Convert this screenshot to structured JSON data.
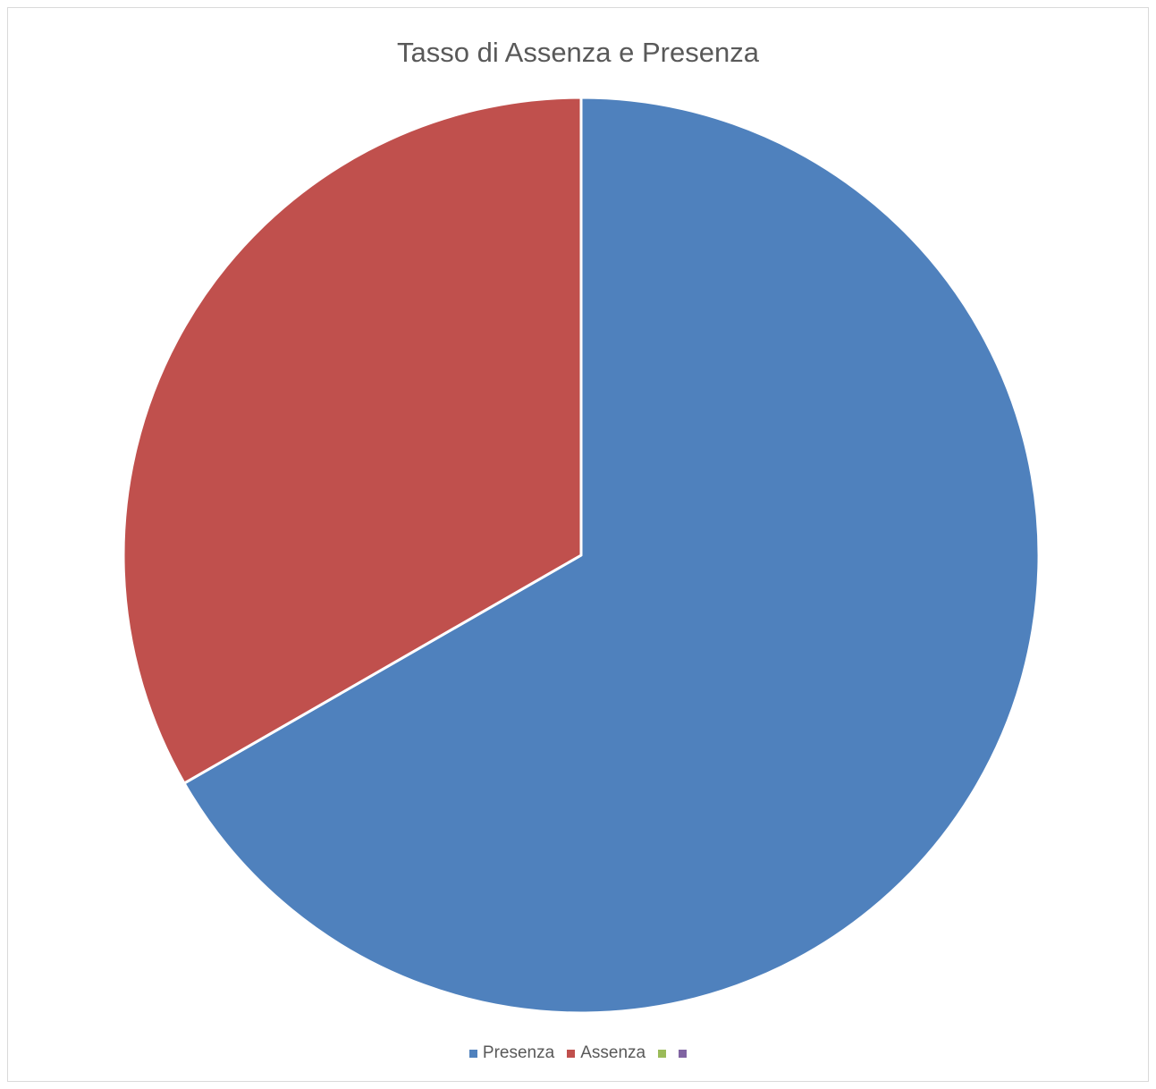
{
  "chart_data": {
    "type": "pie",
    "title": "Tasso di Assenza e Presenza",
    "slices": [
      {
        "label": "Presenza",
        "value": 66.7,
        "color": "#4f81bd"
      },
      {
        "label": "Assenza",
        "value": 33.3,
        "color": "#c0504d"
      },
      {
        "label": "",
        "value": 0,
        "color": "#9bbb59"
      },
      {
        "label": "",
        "value": 0,
        "color": "#8064a2"
      }
    ],
    "start_angle_deg": 0,
    "direction": "clockwise",
    "legend_position": "bottom"
  }
}
